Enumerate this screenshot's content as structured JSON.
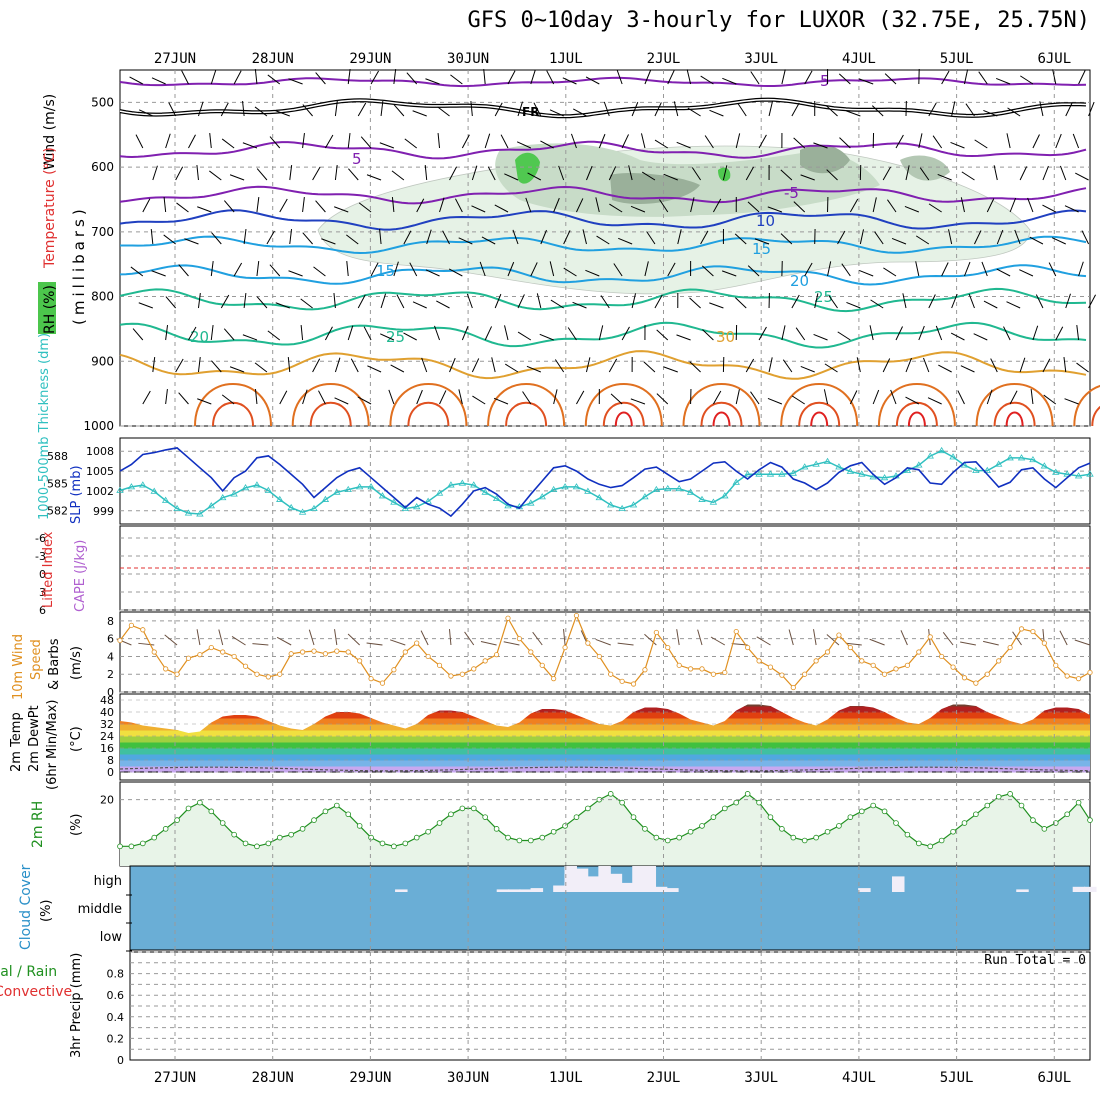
{
  "title": "GFS 0~10day 3-hourly for LUXOR (32.75E, 25.75N)",
  "days": [
    "27JUN",
    "28JUN",
    "29JUN",
    "30JUN",
    "1JUL",
    "2JUL",
    "3JUL",
    "4JUL",
    "5JUL",
    "6JUL"
  ],
  "panels": {
    "upper_air": {
      "ylabel_main": "(millibars)",
      "side_labels": [
        {
          "text": "Wind (m/s)",
          "color": "#000000"
        },
        {
          "text": "Temperature (°C)",
          "color": "#e03030"
        },
        {
          "text": "RH (%)",
          "color": "#000000"
        }
      ],
      "levels": [
        "500",
        "600",
        "700",
        "800",
        "900",
        "1000"
      ],
      "freezing_label": "FR"
    },
    "thickness_slp": {
      "left_label": "1000-500mb Thickness (dm)",
      "right_label": "SLP (mb)",
      "thickness_ticks": [
        "588",
        "585",
        "582"
      ],
      "slp_ticks": [
        "1008",
        "1005",
        "1002",
        "999"
      ]
    },
    "instability": {
      "left_label": "Lifted Index",
      "right_label": "CAPE (J/kg)",
      "ticks": [
        "-6",
        "-3",
        "0",
        "3",
        "6"
      ]
    },
    "wind10m": {
      "label_lines": [
        "10m Wind",
        "Speed",
        "& Barbs"
      ],
      "unit": "(m/s)",
      "ticks": [
        "8",
        "6",
        "4",
        "2",
        "0"
      ]
    },
    "temp2m": {
      "label_lines": [
        "2m Temp",
        "2m DewPt",
        "(6hr Min/Max)"
      ],
      "unit": "(°C)",
      "ticks": [
        "48",
        "40",
        "32",
        "24",
        "16",
        "8",
        "0"
      ]
    },
    "rh2m": {
      "label": "2m RH",
      "unit": "(%)",
      "ticks": [
        "20"
      ]
    },
    "cloud": {
      "label": "Cloud Cover",
      "unit": "(%)",
      "levels": [
        "high",
        "middle",
        "low"
      ]
    },
    "precip": {
      "label_lines": [
        "Total / Rain",
        "Convective"
      ],
      "ylabel": "3hr Precip (mm)",
      "run_total": "Run Total = 0",
      "ticks": [
        "0.8",
        "0.6",
        "0.4",
        "0.2",
        "0"
      ]
    }
  },
  "colors": {
    "slp": "#1030c0",
    "thickness": "#30c0c0",
    "lifted_index": "#e03030",
    "cape": "#b060d0",
    "wind_speed": "#e09020",
    "rh": "#209020",
    "rh_fill": "#e8f4e8",
    "cloud_clear": "#6aaed6",
    "cloud_cover": "#f2eef8",
    "grid": "#aaaaaa"
  },
  "chart_data": [
    {
      "type": "line",
      "name": "slp",
      "title": "SLP (mb)",
      "x_start_day": "27JUN",
      "ylim": [
        997,
        1010
      ],
      "values": [
        1005,
        1006,
        1007.5,
        1007.8,
        1008.2,
        1008.5,
        1007,
        1005.5,
        1004,
        1002,
        1004,
        1005,
        1007,
        1007.3,
        1006,
        1004.5,
        1003,
        1001,
        1002.5,
        1004,
        1005,
        1005.5,
        1004,
        1002.5,
        1001,
        999.5,
        1001,
        1000,
        999.4,
        998.2,
        1000,
        1002,
        1002.5,
        1001.5,
        1000,
        999.4,
        1001.5,
        1003.5,
        1005.5,
        1005.8,
        1005,
        1003.8,
        1003,
        1002.5,
        1002.8,
        1004,
        1005.3,
        1005.6,
        1004.5,
        1003.4,
        1003.8,
        1005,
        1006.2,
        1006.4,
        1005,
        1003.8,
        1005.2,
        1006.3,
        1005.6,
        1003.8,
        1003.2,
        1002.2,
        1003.2,
        1004.8,
        1005.8,
        1006.3,
        1004.5,
        1003,
        1004,
        1005.5,
        1005.2,
        1003.2,
        1003,
        1004.8,
        1006.3,
        1006.4,
        1004.5,
        1002.6,
        1003.3,
        1005.2,
        1005.5,
        1003.8,
        1002.5,
        1004,
        1005.5,
        1006.2
      ]
    },
    {
      "type": "line",
      "name": "thickness",
      "title": "1000-500mb Thickness (dm)",
      "ylim": [
        580.5,
        590
      ],
      "values": [
        584.2,
        584.6,
        584.8,
        584.1,
        583.1,
        582.2,
        581.7,
        581.6,
        582.5,
        583.4,
        583.8,
        584.5,
        584.8,
        584.2,
        583.2,
        582.3,
        581.8,
        582.2,
        583.2,
        584.0,
        584.3,
        584.6,
        584.6,
        583.6,
        582.9,
        582.2,
        582.4,
        583.0,
        583.9,
        584.8,
        585.0,
        584.8,
        584.0,
        583.3,
        582.5,
        582.4,
        582.8,
        583.5,
        584.3,
        584.6,
        584.6,
        584.1,
        583.4,
        582.6,
        582.2,
        582.6,
        583.5,
        584.3,
        584.4,
        584.4,
        584.0,
        583.2,
        582.9,
        583.6,
        585.1,
        586.0,
        586.0,
        586.0,
        586.0,
        586.1,
        586.8,
        587.1,
        587.4,
        586.8,
        586.3,
        586.0,
        585.7,
        585.6,
        585.8,
        586.4,
        587.0,
        588.0,
        588.6,
        587.9,
        587.0,
        586.4,
        586.4,
        587.1,
        587.8,
        587.8,
        587.6,
        586.9,
        586.2,
        586.0,
        585.8,
        586.0
      ]
    },
    {
      "type": "line",
      "name": "wind10m",
      "title": "10m Wind Speed (m/s)",
      "ylim": [
        0,
        9
      ],
      "values": [
        5.8,
        7.5,
        7.0,
        4.5,
        2.6,
        2.0,
        3.8,
        4.2,
        5.0,
        4.5,
        4.0,
        2.9,
        2.0,
        1.7,
        2.0,
        4.3,
        4.5,
        4.6,
        4.3,
        4.6,
        4.5,
        3.5,
        1.5,
        1.0,
        2.5,
        4.5,
        5.5,
        4.0,
        3.0,
        1.8,
        2.0,
        2.6,
        3.5,
        4.2,
        8.3,
        6.0,
        4.5,
        3.0,
        1.5,
        5.0,
        8.6,
        5.5,
        4.0,
        2.0,
        1.2,
        0.9,
        2.5,
        6.7,
        5.0,
        3.0,
        2.6,
        2.6,
        2.0,
        2.2,
        6.8,
        5.0,
        3.5,
        2.8,
        1.9,
        0.5,
        2.0,
        3.5,
        4.5,
        6.4,
        5.0,
        3.5,
        3.0,
        2.0,
        2.6,
        3.0,
        4.5,
        6.2,
        4.0,
        2.8,
        1.6,
        1.0,
        2.0,
        3.5,
        5.0,
        7.1,
        6.8,
        5.5,
        3.0,
        1.8,
        1.5,
        2.2
      ]
    },
    {
      "type": "area",
      "name": "temp2m",
      "title": "2m Temp (°C)",
      "ylim": [
        0,
        48
      ],
      "values": [
        34,
        33,
        31,
        30,
        29,
        28,
        26,
        27,
        33,
        37,
        38,
        38,
        37,
        34,
        31,
        29,
        28,
        32,
        37,
        40,
        40,
        39,
        36,
        33,
        31,
        29,
        32,
        38,
        41,
        41,
        40,
        37,
        34,
        31,
        30,
        33,
        39,
        42,
        42,
        41,
        38,
        35,
        32,
        31,
        34,
        40,
        43,
        43,
        42,
        39,
        35,
        33,
        31,
        34,
        41,
        45,
        45,
        44,
        40,
        36,
        33,
        31,
        35,
        41,
        44,
        44,
        43,
        40,
        36,
        33,
        32,
        36,
        42,
        45,
        45,
        44,
        40,
        37,
        34,
        32,
        35,
        41,
        43,
        43,
        42,
        38
      ]
    },
    {
      "type": "line",
      "name": "rh2m",
      "title": "2m RH (%)",
      "ylim": [
        0,
        24
      ],
      "values": [
        4,
        4,
        5,
        7,
        10,
        13,
        17,
        19,
        16,
        12,
        8,
        5,
        4,
        5,
        7,
        8,
        10,
        13,
        16,
        18,
        15,
        11,
        7,
        5,
        4,
        5,
        7,
        9,
        12,
        15,
        17,
        17,
        14,
        10,
        7,
        6,
        6,
        7,
        9,
        11,
        14,
        17,
        20,
        22,
        19,
        14,
        10,
        7,
        6,
        7,
        9,
        11,
        14,
        17,
        19,
        22,
        19,
        14,
        10,
        7,
        6,
        7,
        9,
        11,
        14,
        16,
        18,
        16,
        12,
        8,
        5,
        4,
        6,
        9,
        12,
        15,
        18,
        21,
        22,
        18,
        13,
        10,
        12,
        15,
        19,
        13
      ]
    },
    {
      "type": "bar",
      "name": "high_cloud",
      "title": "Cloud Cover high",
      "values": [
        0,
        0,
        0,
        0,
        0,
        0,
        0,
        0,
        0,
        0,
        0,
        0,
        0,
        0,
        0,
        0,
        0,
        0,
        0,
        0,
        0,
        0,
        0,
        0,
        10,
        0,
        0,
        0,
        0,
        0,
        0,
        0,
        0,
        10,
        10,
        10,
        15,
        0,
        25,
        100,
        90,
        60,
        100,
        70,
        35,
        100,
        100,
        20,
        15,
        0,
        0,
        0,
        0,
        0,
        0,
        0,
        0,
        0,
        0,
        0,
        0,
        0,
        0,
        0,
        0,
        15,
        0,
        0,
        60,
        0,
        0,
        0,
        0,
        0,
        0,
        0,
        0,
        0,
        0,
        10,
        0,
        0,
        0,
        0,
        20,
        20
      ]
    }
  ]
}
